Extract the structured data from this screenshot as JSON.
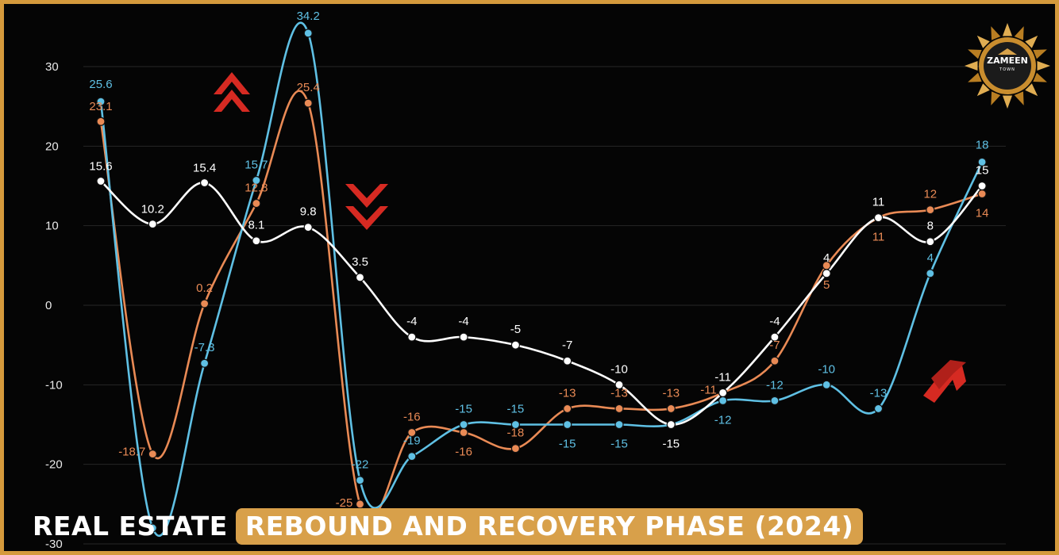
{
  "banner": {
    "part1": "REAL ESTATE",
    "part2": "REBOUND AND RECOVERY PHASE (2024)"
  },
  "logo": {
    "brand": "ZAMEEN",
    "sub": "TOWN",
    "icon": "sun-emblem"
  },
  "colors": {
    "background": "#050505",
    "border": "#d59a3c",
    "white_series": "#ffffff",
    "orange_series": "#e98a55",
    "blue_series": "#5fc0e4",
    "arrows": "#d62a22",
    "banner_highlight": "#d8a04a"
  },
  "chart_data": {
    "type": "line",
    "title": "",
    "xlabel": "",
    "ylabel": "",
    "ylim": [
      -30,
      30
    ],
    "yticks": [
      30,
      20,
      10,
      0,
      -10,
      -20,
      -30
    ],
    "ytick_labels": [
      "30",
      "20",
      "10",
      "0",
      "-10",
      "-20",
      "-30"
    ],
    "grid": true,
    "legend": "none",
    "series": [
      {
        "color_name": "white",
        "values": [
          15.6,
          10.2,
          15.4,
          8.1,
          9.8,
          3.5,
          -4,
          -4,
          -5,
          -7,
          -10,
          -15,
          -11,
          -4,
          4,
          11,
          8,
          15
        ],
        "labels": [
          "15.6",
          "10.2",
          "15.4",
          "8.1",
          "9.8",
          "3.5",
          "-4",
          "-4",
          "-5",
          "-7",
          "-10",
          "-15",
          "-11",
          "-4",
          "4",
          "11",
          "8",
          "15"
        ]
      },
      {
        "color_name": "orange",
        "values": [
          23.1,
          -18.7,
          0.2,
          12.8,
          25.4,
          -25,
          -16,
          -16,
          -18,
          -13,
          -13,
          -13,
          -11,
          -7,
          5,
          11,
          12,
          14
        ],
        "labels": [
          "23.1",
          "-18.7",
          "0.2",
          "12.8",
          "25.4",
          "-25",
          "-16",
          "-16",
          "-18",
          "-13",
          "-13",
          "-13",
          "-11",
          "-7",
          "5",
          "11",
          "12",
          "14"
        ]
      },
      {
        "color_name": "blue",
        "values": [
          25.6,
          -28,
          -7.3,
          15.7,
          34.2,
          -22,
          -19,
          -15,
          -15,
          -15,
          -15,
          -15,
          -12,
          -12,
          -10,
          -13,
          4,
          18
        ],
        "labels": [
          "25.6",
          "",
          "-7.3",
          "15.7",
          "34.2",
          "-22",
          "-19",
          "-15",
          "-15",
          "-15",
          "-15",
          "",
          "-12",
          "-12",
          "-10",
          "-13",
          "4",
          "18"
        ]
      }
    ],
    "annotations": [
      "double-up-arrow",
      "double-down-arrow",
      "up-arrow"
    ]
  }
}
